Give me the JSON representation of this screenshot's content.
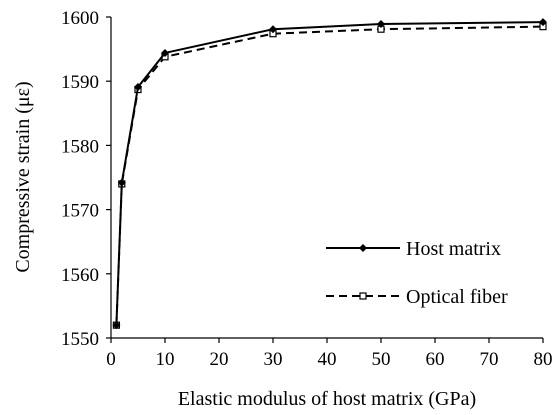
{
  "chart_data": {
    "type": "line",
    "title": "",
    "xlabel": "Elastic modulus of host matrix (GPa)",
    "ylabel": "Compressive strain (με)",
    "xlim": [
      0,
      80
    ],
    "ylim": [
      1550,
      1600
    ],
    "xticks": [
      0,
      10,
      20,
      30,
      40,
      50,
      60,
      70,
      80
    ],
    "yticks": [
      1550,
      1560,
      1570,
      1580,
      1590,
      1600
    ],
    "grid": false,
    "legend_position": "lower-right",
    "series": [
      {
        "name": "Host matrix",
        "color": "#000000",
        "line_style": "solid",
        "marker": "filled-diamond",
        "x": [
          1,
          2,
          5,
          10,
          30,
          50,
          80
        ],
        "y": [
          1552,
          1574.2,
          1589.1,
          1594.4,
          1598.1,
          1598.9,
          1599.2
        ]
      },
      {
        "name": "Optical fiber",
        "color": "#000000",
        "line_style": "dashed",
        "marker": "open-square",
        "x": [
          1,
          2,
          5,
          10,
          30,
          50,
          80
        ],
        "y": [
          1552,
          1574,
          1588.7,
          1593.8,
          1597.4,
          1598.1,
          1598.5
        ]
      }
    ]
  }
}
